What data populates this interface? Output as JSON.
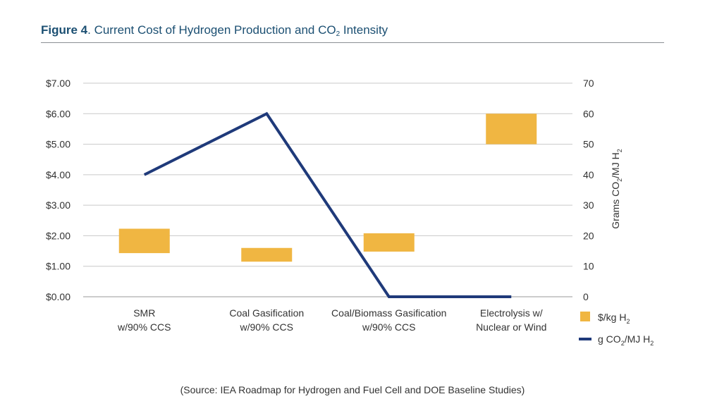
{
  "figure": {
    "label": "Figure 4",
    "title_main": ". Current Cost of Hydrogen Production and CO",
    "title_sub": "2",
    "title_end": " Intensity"
  },
  "source": "(Source:  IEA Roadmap for Hydrogen and Fuel Cell and DOE Baseline Studies)",
  "colors": {
    "bar": "#f0b642",
    "line": "#1f3a7a",
    "grid": "#c9c9c9",
    "title": "#1b4f72"
  },
  "chart_data": {
    "type": "bar+line",
    "categories": [
      [
        "SMR",
        "w/90% CCS"
      ],
      [
        "Coal Gasification",
        "w/90% CCS"
      ],
      [
        "Coal/Biomass Gasification",
        "w/90% CCS"
      ],
      [
        "Electrolysis w/",
        "Nuclear or Wind"
      ]
    ],
    "bar_series": {
      "name": "$/kg H",
      "name_sub": "2",
      "ranges": [
        [
          1.43,
          2.23
        ],
        [
          1.15,
          1.6
        ],
        [
          1.48,
          2.08
        ],
        [
          5.0,
          6.0
        ]
      ]
    },
    "line_series": {
      "name": "g CO",
      "name_sub": "2",
      "name_end": "/MJ H",
      "name_end_sub": "2",
      "values": [
        40,
        60,
        0,
        0
      ]
    },
    "y_left": {
      "ylim": [
        0,
        7
      ],
      "ticks": [
        "$0.00",
        "$1.00",
        "$2.00",
        "$3.00",
        "$4.00",
        "$5.00",
        "$6.00",
        "$7.00"
      ]
    },
    "y_right": {
      "ylim": [
        0,
        70
      ],
      "ticks": [
        "0",
        "10",
        "20",
        "30",
        "40",
        "50",
        "60",
        "70"
      ],
      "label": "Grams CO",
      "label_sub": "2",
      "label_end": "/MJ H",
      "label_end_sub": "2"
    },
    "grid": true,
    "legend": "bottom-right"
  }
}
